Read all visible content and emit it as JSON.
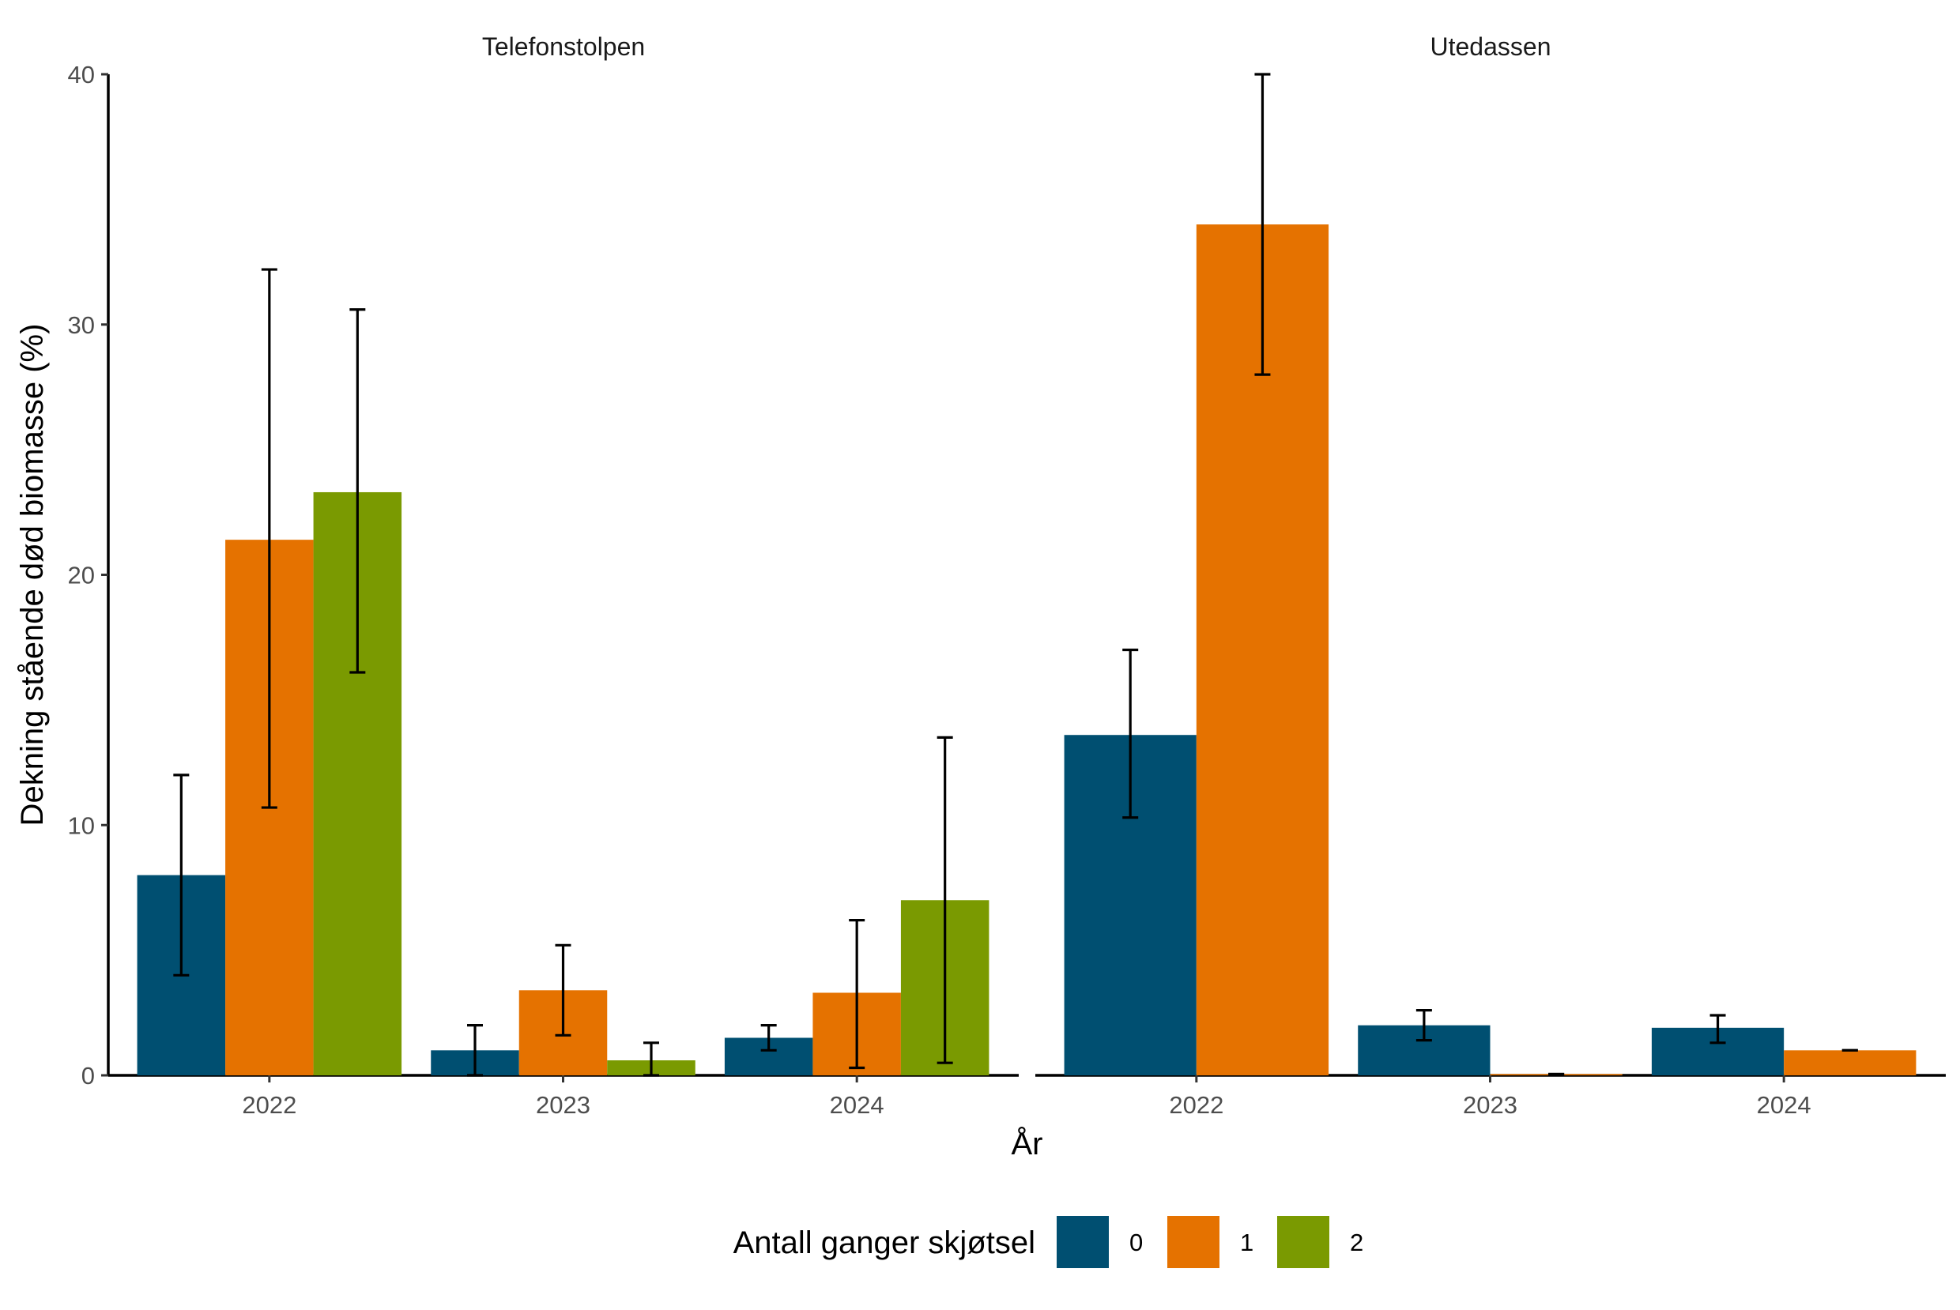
{
  "chart_data": {
    "type": "bar",
    "facets": [
      {
        "name": "Telefonstolpen",
        "categories": [
          "2022",
          "2023",
          "2024"
        ],
        "series": [
          {
            "name": "0",
            "values": [
              8.0,
              1.0,
              1.5
            ],
            "error_low": [
              4.0,
              0.0,
              1.0
            ],
            "error_high": [
              12.0,
              2.0,
              2.0
            ]
          },
          {
            "name": "1",
            "values": [
              21.4,
              3.4,
              3.3
            ],
            "error_low": [
              10.7,
              1.6,
              0.3
            ],
            "error_high": [
              32.2,
              5.2,
              6.2
            ]
          },
          {
            "name": "2",
            "values": [
              23.3,
              0.6,
              7.0
            ],
            "error_low": [
              16.1,
              0.0,
              0.5
            ],
            "error_high": [
              30.6,
              1.3,
              13.5
            ]
          }
        ]
      },
      {
        "name": "Utedassen",
        "categories": [
          "2022",
          "2023",
          "2024"
        ],
        "series": [
          {
            "name": "0",
            "values": [
              13.6,
              2.0,
              1.9
            ],
            "error_low": [
              10.3,
              1.4,
              1.3
            ],
            "error_high": [
              17.0,
              2.6,
              2.4
            ]
          },
          {
            "name": "1",
            "values": [
              34.0,
              0.05,
              1.0
            ],
            "error_low": [
              28.0,
              0.05,
              1.0
            ],
            "error_high": [
              40.0,
              0.05,
              1.0
            ]
          }
        ]
      }
    ],
    "ylim": [
      0,
      40
    ],
    "yticks": [
      "0",
      "10",
      "20",
      "30",
      "40"
    ],
    "xlabel": "År",
    "ylabel": "Dekning stående død biomasse (%)",
    "legend": {
      "title": "Antall ganger skjøtsel",
      "position": "bottom",
      "entries": [
        {
          "label": "0",
          "color": "#004F71"
        },
        {
          "label": "1",
          "color": "#E57200"
        },
        {
          "label": "2",
          "color": "#7A9A01"
        }
      ]
    },
    "grid": false
  }
}
